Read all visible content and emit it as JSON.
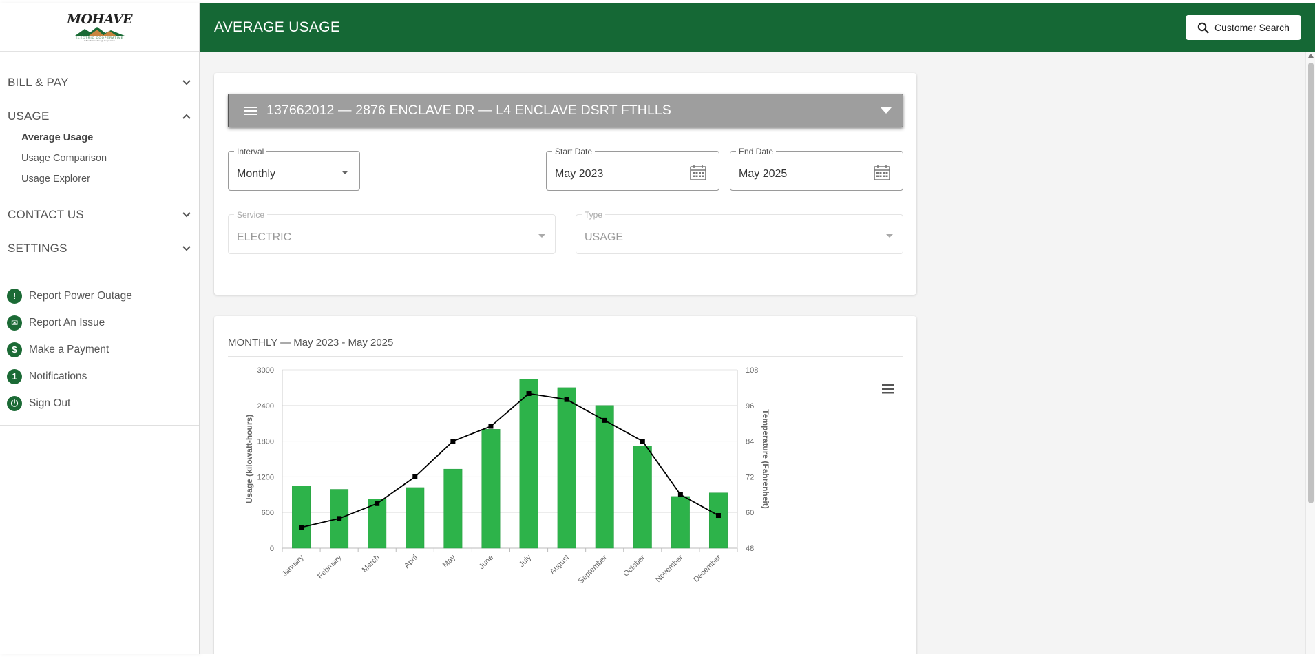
{
  "sidebar": {
    "logo": {
      "title": "MOHAVE",
      "sub": "ELECTRIC COOPERATIVE",
      "sub2": "A Touchstone Energy Cooperative"
    },
    "sections": [
      {
        "label": "BILL & PAY",
        "expanded": false
      },
      {
        "label": "USAGE",
        "expanded": true
      },
      {
        "label": "CONTACT US",
        "expanded": false
      },
      {
        "label": "SETTINGS",
        "expanded": false
      }
    ],
    "usage_items": [
      {
        "label": "Average Usage",
        "active": true
      },
      {
        "label": "Usage Comparison",
        "active": false
      },
      {
        "label": "Usage Explorer",
        "active": false
      }
    ],
    "quick_links": [
      {
        "label": "Report Power Outage",
        "icon": "exclamation-icon",
        "glyph": "!"
      },
      {
        "label": "Report An Issue",
        "icon": "envelope-icon",
        "glyph": "✉"
      },
      {
        "label": "Make a Payment",
        "icon": "dollar-icon",
        "glyph": "$"
      },
      {
        "label": "Notifications",
        "icon": "notification-count-icon",
        "glyph": "1"
      },
      {
        "label": "Sign Out",
        "icon": "power-icon",
        "glyph": "⏻"
      }
    ]
  },
  "header": {
    "title": "AVERAGE USAGE",
    "search_label": "Customer Search"
  },
  "filters": {
    "account": "137662012 — 2876 ENCLAVE DR — L4 ENCLAVE DSRT FTHLLS",
    "interval": {
      "label": "Interval",
      "value": "Monthly"
    },
    "start_date": {
      "label": "Start Date",
      "value": "May 2023"
    },
    "end_date": {
      "label": "End Date",
      "value": "May 2025"
    },
    "service": {
      "label": "Service",
      "value": "ELECTRIC"
    },
    "type": {
      "label": "Type",
      "value": "USAGE"
    }
  },
  "chart_title": "MONTHLY — May 2023 - May 2025",
  "colors": {
    "brand_green": "#156835",
    "bar_green": "#2db34a",
    "select_gray": "#9e9e9e"
  },
  "chart_data": {
    "type": "bar",
    "categories": [
      "January",
      "February",
      "March",
      "April",
      "May",
      "June",
      "July",
      "August",
      "September",
      "October",
      "November",
      "December"
    ],
    "series": [
      {
        "type": "bar",
        "axis": "left",
        "values": [
          1050,
          990,
          830,
          1020,
          1330,
          2000,
          2840,
          2700,
          2400,
          1720,
          870,
          930
        ]
      },
      {
        "type": "line",
        "axis": "right",
        "values": [
          55,
          58,
          63,
          72,
          84,
          89,
          100,
          98,
          91,
          84,
          66,
          59
        ]
      }
    ],
    "ylabel": "Usage (kilowatt-hours)",
    "y2label": "Temperature (Fahrenheit)",
    "ylim": [
      0,
      3000
    ],
    "y2lim": [
      48,
      108
    ],
    "yticks": [
      "0",
      "600",
      "1200",
      "1800",
      "2400",
      "3000"
    ],
    "y2ticks": [
      "48",
      "60",
      "72",
      "84",
      "96",
      "108"
    ],
    "grid": true
  }
}
